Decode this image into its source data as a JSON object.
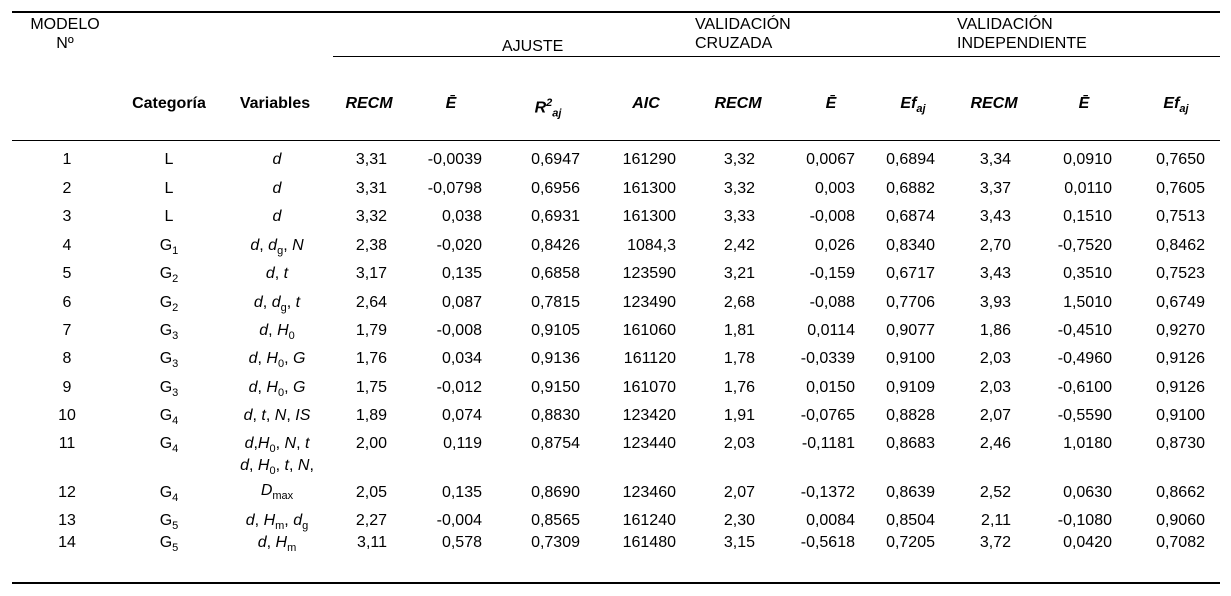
{
  "header": {
    "modelo_line1": "MODELO",
    "modelo_line2": "Nº",
    "ajuste": "AJUSTE",
    "validacion_cruzada_line1": "VALIDACIÓN",
    "validacion_cruzada_line2": "CRUZADA",
    "validacion_independiente_line1": "VALIDACIÓN",
    "validacion_independiente_line2": "INDEPENDIENTE",
    "categoria": "Categoría",
    "variables": "Variables",
    "recm": "RECM",
    "ebar": "Ē",
    "r2aj_base": "R",
    "r2aj_sup": "2",
    "r2aj_sub": "aj",
    "aic": "AIC",
    "efaj_base": "Ef",
    "efaj_sub": "aj"
  },
  "rows": [
    {
      "n": "1",
      "cat": "L",
      "cat_sub": "",
      "vars": "d",
      "recm1": "3,31",
      "e1": "-0,0039",
      "r2": "0,6947",
      "aic": "161290",
      "recm2": "3,32",
      "e2": "0,0067",
      "ef2": "0,6894",
      "recm3": "3,34",
      "e3": "0,0910",
      "ef3": "0,7650"
    },
    {
      "n": "2",
      "cat": "L",
      "cat_sub": "",
      "vars": "d",
      "recm1": "3,31",
      "e1": "-0,0798",
      "r2": "0,6956",
      "aic": "161300",
      "recm2": "3,32",
      "e2": "0,003",
      "ef2": "0,6882",
      "recm3": "3,37",
      "e3": "0,0110",
      "ef3": "0,7605"
    },
    {
      "n": "3",
      "cat": "L",
      "cat_sub": "",
      "vars": "d",
      "recm1": "3,32",
      "e1": "0,038",
      "r2": "0,6931",
      "aic": "161300",
      "recm2": "3,33",
      "e2": "-0,008",
      "ef2": "0,6874",
      "recm3": "3,43",
      "e3": "0,1510",
      "ef3": "0,7513"
    },
    {
      "n": "4",
      "cat": "G",
      "cat_sub": "1",
      "vars": "d, dg, N",
      "recm1": "2,38",
      "e1": "-0,020",
      "r2": "0,8426",
      "aic": "1084,3",
      "recm2": "2,42",
      "e2": "0,026",
      "ef2": "0,8340",
      "recm3": "2,70",
      "e3": "-0,7520",
      "ef3": "0,8462"
    },
    {
      "n": "5",
      "cat": "G",
      "cat_sub": "2",
      "vars": "d, t",
      "recm1": "3,17",
      "e1": "0,135",
      "r2": "0,6858",
      "aic": "123590",
      "recm2": "3,21",
      "e2": "-0,159",
      "ef2": "0,6717",
      "recm3": "3,43",
      "e3": "0,3510",
      "ef3": "0,7523"
    },
    {
      "n": "6",
      "cat": "G",
      "cat_sub": "2",
      "vars": "d, dg, t",
      "recm1": "2,64",
      "e1": "0,087",
      "r2": "0,7815",
      "aic": "123490",
      "recm2": "2,68",
      "e2": "-0,088",
      "ef2": "0,7706",
      "recm3": "3,93",
      "e3": "1,5010",
      "ef3": "0,6749"
    },
    {
      "n": "7",
      "cat": "G",
      "cat_sub": "3",
      "vars": "d, H0",
      "recm1": "1,79",
      "e1": "-0,008",
      "r2": "0,9105",
      "aic": "161060",
      "recm2": "1,81",
      "e2": "0,0114",
      "ef2": "0,9077",
      "recm3": "1,86",
      "e3": "-0,4510",
      "ef3": "0,9270"
    },
    {
      "n": "8",
      "cat": "G",
      "cat_sub": "3",
      "vars": "d, H0, G",
      "recm1": "1,76",
      "e1": "0,034",
      "r2": "0,9136",
      "aic": "161120",
      "recm2": "1,78",
      "e2": "-0,0339",
      "ef2": "0,9100",
      "recm3": "2,03",
      "e3": "-0,4960",
      "ef3": "0,9126"
    },
    {
      "n": "9",
      "cat": "G",
      "cat_sub": "3",
      "vars": "d, H0, G",
      "recm1": "1,75",
      "e1": "-0,012",
      "r2": "0,9150",
      "aic": "161070",
      "recm2": "1,76",
      "e2": "0,0150",
      "ef2": "0,9109",
      "recm3": "2,03",
      "e3": "-0,6100",
      "ef3": "0,9126"
    },
    {
      "n": "10",
      "cat": "G",
      "cat_sub": "4",
      "vars": "d, t, N, IS",
      "recm1": "1,89",
      "e1": "0,074",
      "r2": "0,8830",
      "aic": "123420",
      "recm2": "1,91",
      "e2": "-0,0765",
      "ef2": "0,8828",
      "recm3": "2,07",
      "e3": "-0,5590",
      "ef3": "0,9100"
    },
    {
      "n": "11",
      "cat": "G",
      "cat_sub": "4",
      "vars": "d,H0, N, t",
      "recm1": "2,00",
      "e1": "0,119",
      "r2": "0,8754",
      "aic": "123440",
      "recm2": "2,03",
      "e2": "-0,1181",
      "ef2": "0,8683",
      "recm3": "2,46",
      "e3": "1,0180",
      "ef3": "0,8730"
    },
    {
      "n": "12",
      "cat": "G",
      "cat_sub": "4",
      "vars": "d, H0, t, N, Dmax",
      "recm1": "2,05",
      "e1": "0,135",
      "r2": "0,8690",
      "aic": "123460",
      "recm2": "2,07",
      "e2": "-0,1372",
      "ef2": "0,8639",
      "recm3": "2,52",
      "e3": "0,0630",
      "ef3": "0,8662"
    },
    {
      "n": "13",
      "cat": "G",
      "cat_sub": "5",
      "vars": "d, Hm, dg",
      "recm1": "2,27",
      "e1": "-0,004",
      "r2": "0,8565",
      "aic": "161240",
      "recm2": "2,30",
      "e2": "0,0084",
      "ef2": "0,8504",
      "recm3": "2,11",
      "e3": "-0,1080",
      "ef3": "0,9060"
    },
    {
      "n": "14",
      "cat": "G",
      "cat_sub": "5",
      "vars": "d, Hm",
      "recm1": "3,11",
      "e1": "0,578",
      "r2": "0,7309",
      "aic": "161480",
      "recm2": "3,15",
      "e2": "-0,5618",
      "ef2": "0,7205",
      "recm3": "3,72",
      "e3": "0,0420",
      "ef3": "0,7082"
    }
  ]
}
